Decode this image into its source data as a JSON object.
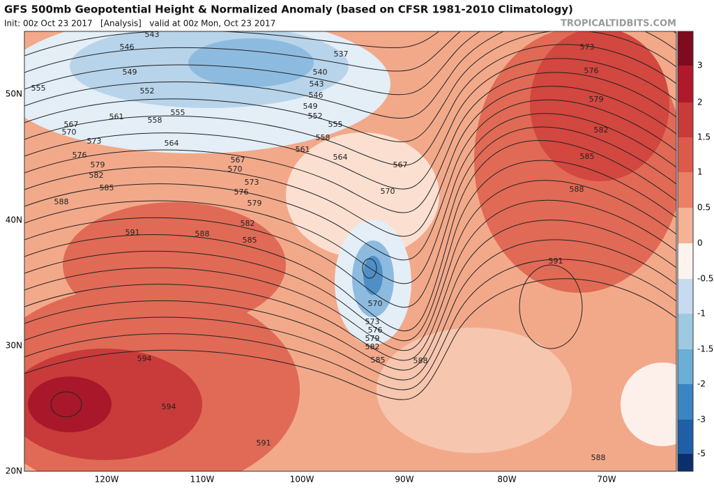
{
  "header": {
    "title": "GFS 500mb Geopotential Height & Normalized Anomaly (based on CFSR 1981-2010 Climatology)",
    "init": "Init: 00z Oct 23 2017   [Analysis]   valid at 00z Mon, Oct 23 2017",
    "site": "TROPICALTIDBITS.COM"
  },
  "map": {
    "lat_labels": [
      "50N",
      "40N",
      "30N",
      "20N"
    ],
    "lon_labels": [
      "120W",
      "110W",
      "100W",
      "90W",
      "80W",
      "70W"
    ],
    "contour_labels": [
      543,
      546,
      549,
      552,
      555,
      561,
      558,
      555,
      567,
      570,
      573,
      576,
      579,
      582,
      585,
      588,
      564,
      567,
      570,
      573,
      576,
      579,
      582,
      585,
      591,
      588,
      537,
      540,
      543,
      546,
      549,
      552,
      555,
      558,
      561,
      564,
      567,
      570,
      570,
      573,
      576,
      579,
      582,
      585,
      588,
      591,
      594,
      594,
      591,
      588,
      573,
      576,
      579,
      582,
      585,
      588
    ]
  },
  "colorbar": {
    "labels": [
      3,
      2,
      1.5,
      1,
      0.5,
      0,
      -0.5,
      -1,
      -1.5,
      -2,
      -3,
      -5
    ]
  }
}
